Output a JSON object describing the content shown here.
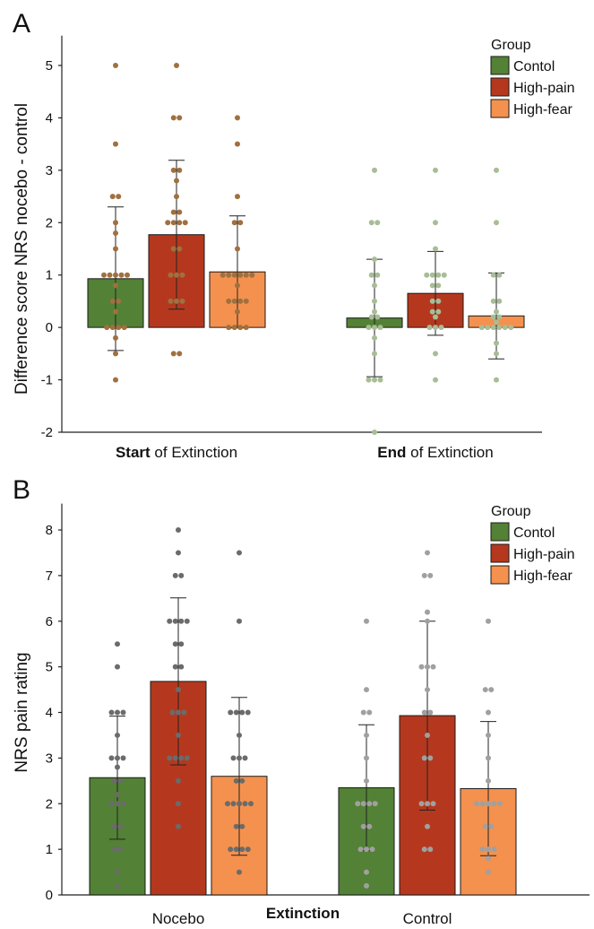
{
  "chart_data": [
    {
      "panel": "A",
      "type": "bar",
      "ylabel": "Difference score NRS nocebo - control",
      "ylim": [
        -2,
        5.5
      ],
      "yticks": [
        "-2",
        "-1",
        "0",
        "1",
        "2",
        "3",
        "4",
        "5"
      ],
      "categories": [
        {
          "bold": "Start",
          "rest": " of Extinction"
        },
        {
          "bold": "End",
          "rest": " of Extinction"
        }
      ],
      "legend": {
        "title": "Group",
        "position": "top-right"
      },
      "series": [
        {
          "name": "Contol",
          "color": "#538135",
          "values": [
            0.93,
            0.18
          ],
          "err": [
            1.37,
            1.12
          ],
          "points": [
            [
              5,
              3.5,
              2.5,
              2.5,
              2,
              1.8,
              1.5,
              1,
              1,
              1,
              1,
              1,
              0.8,
              0.5,
              0.5,
              0.3,
              0,
              0,
              0,
              0,
              -0.2,
              -0.5,
              -1
            ],
            [
              3,
              2,
              2,
              1.3,
              1,
              1,
              0.8,
              0.5,
              0.3,
              0.2,
              0.2,
              0,
              0,
              0,
              -0.2,
              -0.5,
              -1,
              -1,
              -1,
              -2
            ]
          ]
        },
        {
          "name": "High-pain",
          "color": "#b5381e",
          "values": [
            1.77,
            0.65
          ],
          "err": [
            1.42,
            0.8
          ],
          "points": [
            [
              5,
              4,
              4,
              3,
              3,
              2.8,
              2.5,
              2.2,
              2.2,
              2,
              2,
              2,
              2,
              1.5,
              1.5,
              1,
              1,
              1,
              0.5,
              0.5,
              0.5,
              -0.5,
              -0.5
            ],
            [
              3,
              2,
              1.5,
              1,
              1,
              1,
              1,
              0.8,
              0.8,
              0.5,
              0.5,
              0.3,
              0.3,
              0.2,
              0,
              0,
              0,
              -0.5,
              -1
            ]
          ]
        },
        {
          "name": "High-fear",
          "color": "#f4914e",
          "values": [
            1.06,
            0.22
          ],
          "err": [
            1.07,
            0.82
          ],
          "points": [
            [
              4,
              3.5,
              2.5,
              2,
              2,
              1.5,
              1,
              1,
              1,
              1,
              1,
              1,
              0.8,
              0.5,
              0.5,
              0.5,
              0.5,
              0.3,
              0,
              0,
              0,
              0
            ],
            [
              3,
              2,
              1,
              1,
              0.5,
              0.5,
              0.3,
              0.2,
              0.2,
              0.1,
              0,
              0,
              0,
              0,
              0,
              0,
              -0.3,
              -0.5,
              -1
            ]
          ]
        }
      ],
      "point_colors": [
        "#a07040",
        "#a8bd96"
      ]
    },
    {
      "panel": "B",
      "type": "bar",
      "ylabel": "NRS pain rating",
      "ylim": [
        0,
        8.5
      ],
      "yticks": [
        "0",
        "1",
        "2",
        "3",
        "4",
        "5",
        "6",
        "7",
        "8"
      ],
      "categories": [
        {
          "bold": "",
          "rest": "Nocebo"
        },
        {
          "bold": "",
          "rest": "Control"
        }
      ],
      "xlabel": "Extinction",
      "legend": {
        "title": "Group",
        "position": "top-right"
      },
      "series": [
        {
          "name": "Contol",
          "color": "#538135",
          "values": [
            2.57,
            2.35
          ],
          "err": [
            1.35,
            1.38
          ],
          "points": [
            [
              5.5,
              5,
              4,
              4,
              4,
              3.5,
              3,
              3,
              3,
              2.8,
              2.5,
              2.5,
              2.2,
              2,
              2,
              2,
              1.5,
              1.5,
              1,
              1,
              0.5,
              0.2
            ],
            [
              6,
              4.5,
              4,
              4,
              3.5,
              3,
              2.5,
              2,
              2,
              2,
              2,
              1.5,
              1.5,
              1,
              1,
              1,
              0.5,
              0.2
            ]
          ]
        },
        {
          "name": "High-pain",
          "color": "#b5381e",
          "values": [
            4.68,
            3.93
          ],
          "err": [
            1.83,
            2.07
          ],
          "points": [
            [
              8,
              7.5,
              7,
              7,
              6,
              6,
              6,
              6,
              5.5,
              5.5,
              5,
              5,
              4.5,
              4,
              4,
              4,
              3.5,
              3,
              3,
              3,
              3,
              2.5,
              2,
              1.5
            ],
            [
              7.5,
              7,
              7,
              6.2,
              6,
              5,
              5,
              5,
              4.5,
              4,
              4,
              3.5,
              3,
              3,
              2,
              2,
              2,
              1.5,
              1,
              1
            ]
          ]
        },
        {
          "name": "High-fear",
          "color": "#f4914e",
          "values": [
            2.6,
            2.33
          ],
          "err": [
            1.73,
            1.47
          ],
          "points": [
            [
              7.5,
              6,
              4,
              4,
              4,
              4,
              3.5,
              3,
              3,
              3,
              2.5,
              2.5,
              2,
              2,
              2,
              2,
              2,
              1.5,
              1.5,
              1,
              1,
              1,
              1,
              0.5
            ],
            [
              6,
              4.5,
              4.5,
              4,
              3.5,
              3,
              2.5,
              2,
              2,
              2,
              2,
              2,
              1.5,
              1.5,
              1,
              1,
              1,
              0.8,
              0.5
            ]
          ]
        }
      ],
      "point_colors": [
        "#6b6b6b",
        "#a0a0a0"
      ]
    }
  ]
}
